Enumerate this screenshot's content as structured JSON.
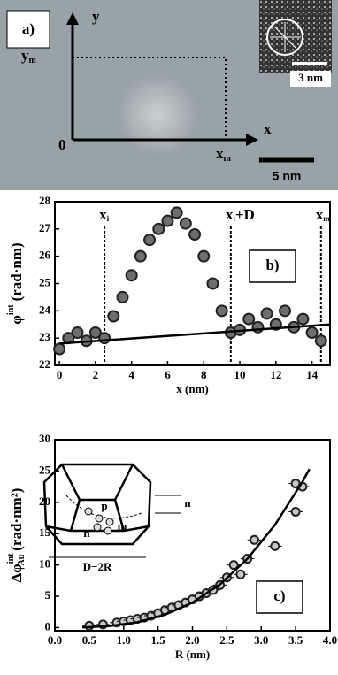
{
  "image_panel": {
    "panel_label": "a)",
    "y_axis": "y",
    "x_axis": "x",
    "origin": "0",
    "ym": {
      "base": "y",
      "sub": "m"
    },
    "xm": {
      "base": "x",
      "sub": "m"
    },
    "scale_main": "5 nm",
    "scale_inset": "3 nm"
  },
  "chart_data": [
    {
      "type": "scatter",
      "panel_label": "b)",
      "x_label": "x (nm)",
      "y_label": {
        "symbol": "φ",
        "superscript": "int",
        "unit": "(rad·nm)"
      },
      "xlim": [
        -0.25,
        15
      ],
      "ylim": [
        22,
        28
      ],
      "xticks": [
        0,
        2,
        4,
        6,
        8,
        10,
        12,
        14
      ],
      "yticks": [
        22,
        23,
        24,
        25,
        26,
        27,
        28
      ],
      "vlines": [
        {
          "text": "x",
          "sub": "i",
          "x": 2.5
        },
        {
          "text": "x",
          "sub": "i",
          "suffix": "+D",
          "x": 9.5
        },
        {
          "text": "x",
          "sub": "m",
          "x": 14.5
        }
      ],
      "series": [
        {
          "color": "#6e6e6e",
          "x": [
            0,
            0.5,
            1,
            1.5,
            2,
            2.5,
            3,
            3.5,
            4,
            4.5,
            5,
            5.5,
            6,
            6.5,
            7,
            7.5,
            8,
            8.5,
            9,
            9.5,
            10,
            10.5,
            11,
            11.5,
            12,
            12.5,
            13,
            13.5,
            14,
            14.5
          ],
          "values": [
            22.6,
            23.0,
            23.2,
            22.9,
            23.2,
            23.0,
            23.8,
            24.5,
            25.3,
            26.0,
            26.6,
            27.0,
            27.3,
            27.6,
            27.2,
            26.8,
            26.0,
            25.0,
            24.0,
            23.2,
            23.3,
            23.7,
            23.4,
            23.9,
            23.5,
            24.0,
            23.4,
            23.7,
            23.2,
            22.9
          ]
        },
        {
          "color": "#000000",
          "style": "line",
          "x": [
            0,
            15
          ],
          "values": [
            22.8,
            23.5
          ]
        }
      ]
    },
    {
      "type": "scatter",
      "panel_label": "c)",
      "x_label": "R (nm)",
      "y_label": {
        "symbol": "Δφ",
        "superscript": "int",
        "subscript": "Au",
        "unit": "(rad·nm²)"
      },
      "xlim": [
        0,
        4
      ],
      "ylim": [
        -0.5,
        30
      ],
      "xticks": [
        {
          "value": 0,
          "label": "0.0"
        },
        0.5,
        {
          "value": 1,
          "label": "1.0"
        },
        1.5,
        {
          "value": 2,
          "label": "2.0"
        },
        2.5,
        {
          "value": 3,
          "label": "3.0"
        },
        3.5,
        {
          "value": 4,
          "label": "4.0"
        }
      ],
      "yticks": [
        0,
        5,
        10,
        15,
        20,
        25,
        30
      ],
      "inset_labels": [
        "D−2R",
        "p",
        "m",
        "n",
        "n"
      ],
      "series": [
        {
          "color": "#c8c8c8",
          "x_error": 0.1,
          "x": [
            0.5,
            0.7,
            0.9,
            1.0,
            1.1,
            1.2,
            1.3,
            1.4,
            1.5,
            1.6,
            1.7,
            1.8,
            1.9,
            2.0,
            2.1,
            2.2,
            2.3,
            2.4,
            2.5,
            2.6,
            2.7,
            2.8,
            2.9,
            3.2,
            3.5,
            3.5,
            3.6
          ],
          "values": [
            0.3,
            0.5,
            0.8,
            1.0,
            1.2,
            1.4,
            1.6,
            1.9,
            2.3,
            2.8,
            3.2,
            3.6,
            4.0,
            4.5,
            5.0,
            5.5,
            6.0,
            6.8,
            8.0,
            10.0,
            8.5,
            11.0,
            14.0,
            13.0,
            18.5,
            23.0,
            22.5
          ]
        },
        {
          "color": "#000000",
          "style": "line",
          "x": [
            0.4,
            0.8,
            1.2,
            1.6,
            2.0,
            2.4,
            2.8,
            3.2,
            3.6,
            3.7
          ],
          "values": [
            0.03,
            0.26,
            0.86,
            2.05,
            4.0,
            6.9,
            11.0,
            16.4,
            23.3,
            25.3
          ]
        }
      ]
    }
  ]
}
